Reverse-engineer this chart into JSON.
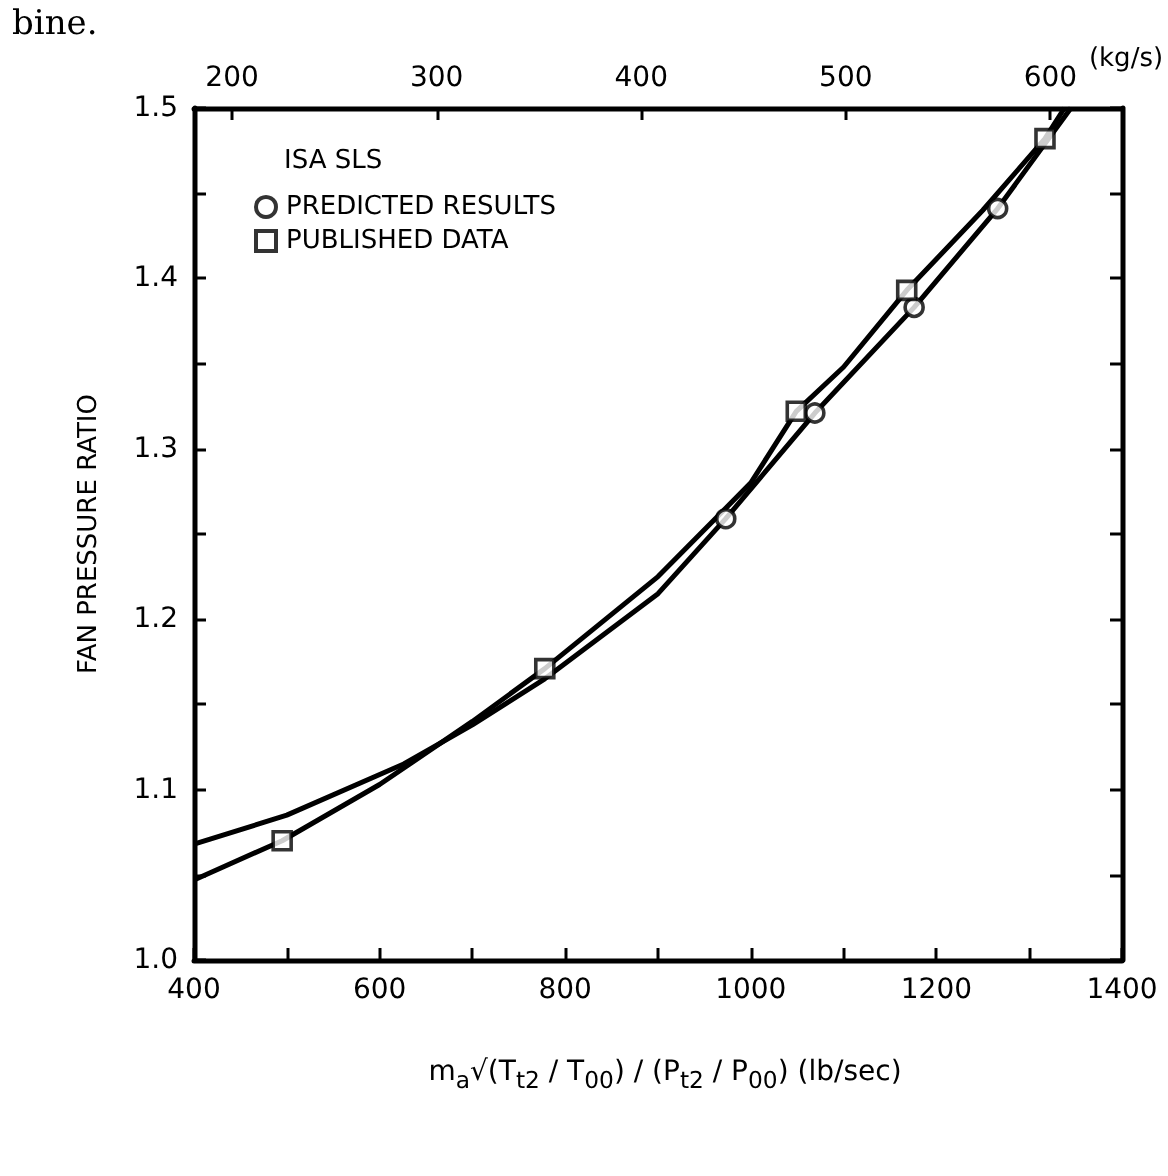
{
  "chart_data": {
    "type": "line",
    "ylabel": "FAN PRESSURE RATIO",
    "xlabel": "m$_{a}$√(T$_{t2}$ / T$_{00}$) / (P$_{t2}$ / P$_{00}$)   (lb/sec)",
    "x2label": "(kg/s)",
    "legend_title": "ISA SLS",
    "annotations": [
      "bine."
    ],
    "xlim": [
      400,
      1400
    ],
    "xticks": [
      400,
      {
        "value": 500,
        "label": null
      },
      600,
      {
        "value": 700,
        "label": null
      },
      800,
      {
        "value": 900,
        "label": null
      },
      1000,
      {
        "value": 1100,
        "label": null
      },
      1200,
      {
        "value": 1300,
        "label": null
      },
      1400
    ],
    "x2lim": [
      181.4,
      635.0
    ],
    "x2ticks": [
      200,
      300,
      400,
      500,
      600
    ],
    "ylim": [
      1.0,
      1.5
    ],
    "yticks": [
      {
        "value": 1.0,
        "label": "1.0"
      },
      {
        "value": 1.05,
        "label": null
      },
      {
        "value": 1.1,
        "label": "1.1"
      },
      {
        "value": 1.15,
        "label": null
      },
      {
        "value": 1.2,
        "label": "1.2"
      },
      {
        "value": 1.25,
        "label": null
      },
      {
        "value": 1.3,
        "label": "1.3"
      },
      {
        "value": 1.35,
        "label": null
      },
      {
        "value": 1.4,
        "label": "1.4"
      },
      {
        "value": 1.45,
        "label": null
      },
      {
        "value": 1.5,
        "label": "1.5"
      }
    ],
    "grid": false,
    "legend": "top left",
    "series": [
      {
        "color": "#000000",
        "marker": "none",
        "x": [
          400,
          495,
          600,
          700,
          778,
          900,
          1000,
          1049,
          1100,
          1168,
          1250,
          1317,
          1338
        ],
        "values": [
          1.047,
          1.07,
          1.103,
          1.14,
          1.171,
          1.225,
          1.28,
          1.322,
          1.348,
          1.393,
          1.44,
          1.482,
          1.5
        ]
      },
      {
        "color": "#000000",
        "marker": "none",
        "x": [
          400,
          500,
          626,
          700,
          778,
          900,
          973,
          1069,
          1176,
          1266,
          1345
        ],
        "values": [
          1.068,
          1.085,
          1.115,
          1.138,
          1.165,
          1.215,
          1.259,
          1.321,
          1.383,
          1.441,
          1.5
        ]
      },
      {
        "type": "scatter",
        "name": "PREDICTED RESULTS",
        "color": "#000000",
        "marker": "circle",
        "x": [
          973,
          1069,
          1176,
          1266
        ],
        "values": [
          1.259,
          1.321,
          1.383,
          1.441
        ]
      },
      {
        "type": "scatter",
        "name": "PUBLISHED DATA",
        "color": "#000000",
        "marker": "square",
        "x": [
          495,
          778,
          1049,
          1168,
          1317
        ],
        "values": [
          1.07,
          1.171,
          1.322,
          1.393,
          1.482
        ]
      }
    ]
  }
}
